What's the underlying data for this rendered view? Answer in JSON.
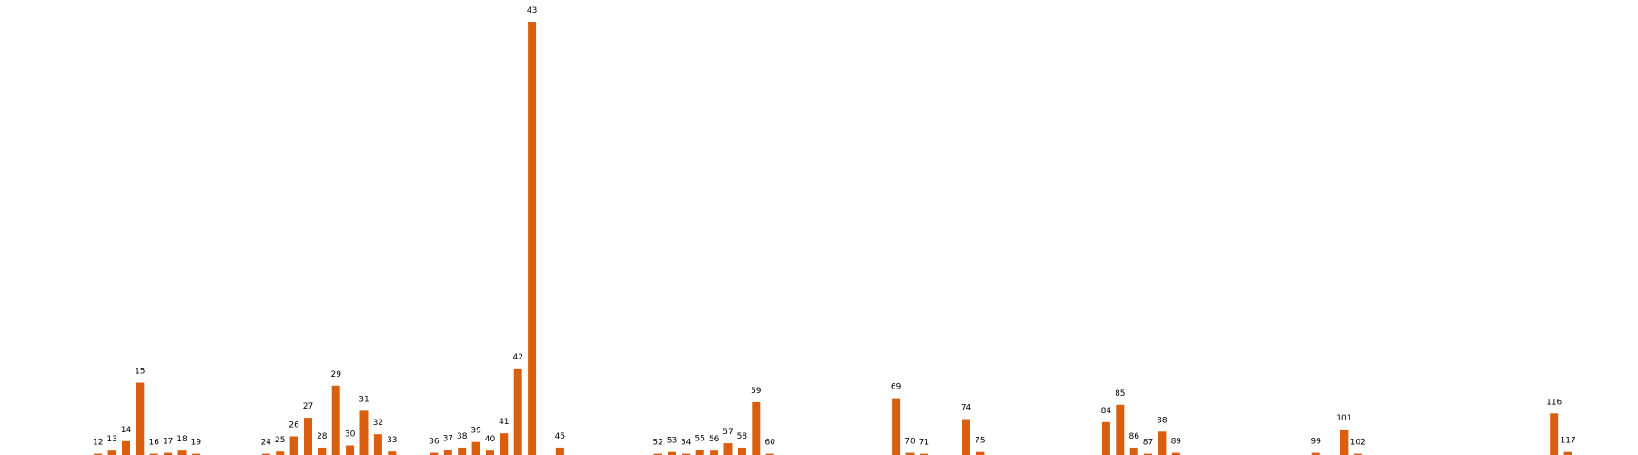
{
  "chart_data": {
    "type": "bar",
    "title": "",
    "xlabel": "",
    "ylabel": "",
    "bar_color": "#d95f0e",
    "label_color": "#000000",
    "background": "#ffffff",
    "grid": false,
    "axes_visible": false,
    "x_range": [
      5,
      122
    ],
    "ylim": [
      0,
      100
    ],
    "categories": [
      "12",
      "13",
      "14",
      "15",
      "16",
      "17",
      "18",
      "19",
      "24",
      "25",
      "26",
      "27",
      "28",
      "29",
      "30",
      "31",
      "32",
      "33",
      "36",
      "37",
      "38",
      "39",
      "40",
      "41",
      "42",
      "43",
      "45",
      "52",
      "53",
      "54",
      "55",
      "56",
      "57",
      "58",
      "59",
      "60",
      "69",
      "70",
      "71",
      "74",
      "75",
      "84",
      "85",
      "86",
      "87",
      "88",
      "89",
      "99",
      "101",
      "102",
      "116",
      "117"
    ],
    "x": [
      12,
      13,
      14,
      15,
      16,
      17,
      18,
      19,
      24,
      25,
      26,
      27,
      28,
      29,
      30,
      31,
      32,
      33,
      36,
      37,
      38,
      39,
      40,
      41,
      42,
      43,
      45,
      52,
      53,
      54,
      55,
      56,
      57,
      58,
      59,
      60,
      69,
      70,
      71,
      74,
      75,
      84,
      85,
      86,
      87,
      88,
      89,
      99,
      101,
      102,
      116,
      117
    ],
    "values": [
      0.3,
      1.0,
      3.2,
      16.7,
      0.3,
      0.5,
      1.0,
      0.3,
      0.3,
      0.8,
      4.3,
      8.6,
      1.7,
      16.0,
      2.2,
      10.2,
      4.8,
      0.8,
      0.5,
      1.2,
      1.7,
      3.0,
      1.0,
      5.0,
      20.0,
      100,
      1.7,
      0.3,
      0.7,
      0.3,
      1.2,
      1.0,
      2.7,
      1.7,
      12.2,
      0.3,
      13.1,
      0.5,
      0.3,
      8.3,
      0.7,
      7.6,
      11.6,
      1.7,
      0.3,
      5.4,
      0.5,
      0.5,
      5.9,
      0.3,
      9.6,
      0.7
    ]
  }
}
